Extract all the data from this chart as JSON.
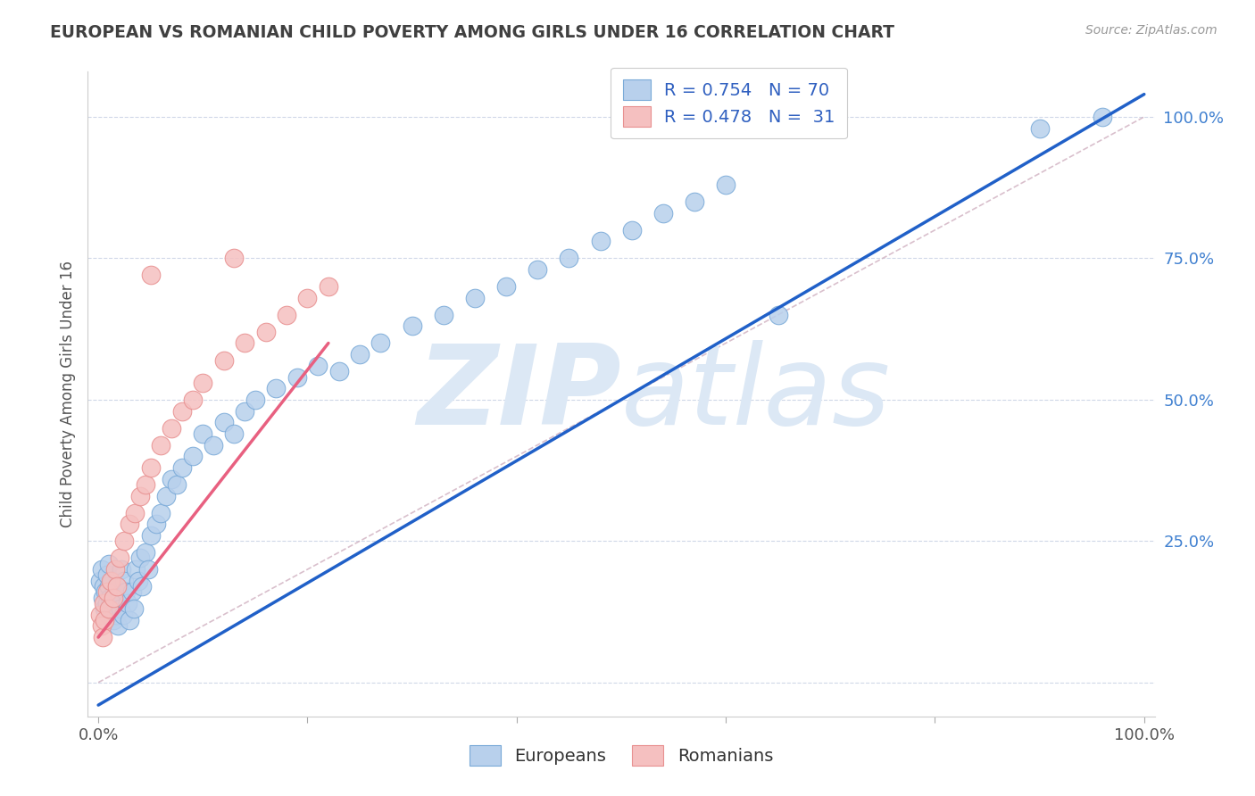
{
  "title": "EUROPEAN VS ROMANIAN CHILD POVERTY AMONG GIRLS UNDER 16 CORRELATION CHART",
  "source": "Source: ZipAtlas.com",
  "ylabel": "Child Poverty Among Girls Under 16",
  "xlim": [
    -0.01,
    1.01
  ],
  "ylim": [
    -0.06,
    1.08
  ],
  "european_R": 0.754,
  "european_N": 70,
  "romanian_R": 0.478,
  "romanian_N": 31,
  "eu_scatter_color": "#b8d0ec",
  "eu_scatter_edge": "#7aaad8",
  "ro_scatter_color": "#f5c0c0",
  "ro_scatter_edge": "#e89090",
  "eu_line_color": "#2060c8",
  "ro_line_color": "#e86080",
  "ref_line_color": "#d0b0c0",
  "bg_color": "#ffffff",
  "grid_color": "#d0d8e8",
  "title_color": "#404040",
  "source_color": "#999999",
  "watermark_zip_color": "#dce8f5",
  "watermark_atlas_color": "#dce8f5",
  "ytick_color": "#4080d0",
  "legend_r_color": "#3060c0",
  "legend_n_color": "#000000",
  "europeans_x": [
    0.002,
    0.003,
    0.004,
    0.005,
    0.006,
    0.007,
    0.008,
    0.008,
    0.009,
    0.01,
    0.01,
    0.011,
    0.012,
    0.013,
    0.014,
    0.015,
    0.016,
    0.017,
    0.018,
    0.019,
    0.02,
    0.021,
    0.022,
    0.024,
    0.025,
    0.026,
    0.028,
    0.03,
    0.032,
    0.034,
    0.036,
    0.038,
    0.04,
    0.042,
    0.045,
    0.048,
    0.05,
    0.055,
    0.06,
    0.065,
    0.07,
    0.075,
    0.08,
    0.09,
    0.1,
    0.11,
    0.12,
    0.13,
    0.14,
    0.15,
    0.17,
    0.19,
    0.21,
    0.23,
    0.25,
    0.27,
    0.3,
    0.33,
    0.36,
    0.39,
    0.42,
    0.45,
    0.48,
    0.51,
    0.54,
    0.57,
    0.6,
    0.65,
    0.9,
    0.96
  ],
  "europeans_y": [
    0.18,
    0.2,
    0.15,
    0.17,
    0.13,
    0.16,
    0.14,
    0.19,
    0.12,
    0.21,
    0.17,
    0.15,
    0.13,
    0.18,
    0.11,
    0.16,
    0.14,
    0.12,
    0.17,
    0.1,
    0.15,
    0.13,
    0.2,
    0.12,
    0.18,
    0.16,
    0.14,
    0.11,
    0.16,
    0.13,
    0.2,
    0.18,
    0.22,
    0.17,
    0.23,
    0.2,
    0.26,
    0.28,
    0.3,
    0.33,
    0.36,
    0.35,
    0.38,
    0.4,
    0.44,
    0.42,
    0.46,
    0.44,
    0.48,
    0.5,
    0.52,
    0.54,
    0.56,
    0.55,
    0.58,
    0.6,
    0.63,
    0.65,
    0.68,
    0.7,
    0.73,
    0.75,
    0.78,
    0.8,
    0.83,
    0.85,
    0.88,
    0.65,
    0.98,
    1.0
  ],
  "romanians_x": [
    0.002,
    0.003,
    0.004,
    0.005,
    0.006,
    0.008,
    0.01,
    0.012,
    0.014,
    0.016,
    0.018,
    0.02,
    0.025,
    0.03,
    0.035,
    0.04,
    0.045,
    0.05,
    0.06,
    0.07,
    0.08,
    0.09,
    0.1,
    0.12,
    0.14,
    0.16,
    0.18,
    0.2,
    0.22,
    0.05,
    0.13
  ],
  "romanians_y": [
    0.12,
    0.1,
    0.08,
    0.14,
    0.11,
    0.16,
    0.13,
    0.18,
    0.15,
    0.2,
    0.17,
    0.22,
    0.25,
    0.28,
    0.3,
    0.33,
    0.35,
    0.38,
    0.42,
    0.45,
    0.48,
    0.5,
    0.53,
    0.57,
    0.6,
    0.62,
    0.65,
    0.68,
    0.7,
    0.72,
    0.75
  ],
  "eu_line_x0": 0.0,
  "eu_line_x1": 1.0,
  "eu_line_y0": -0.04,
  "eu_line_y1": 1.04,
  "ro_line_x0": 0.0,
  "ro_line_x1": 0.22,
  "ro_line_y0": 0.08,
  "ro_line_y1": 0.6
}
